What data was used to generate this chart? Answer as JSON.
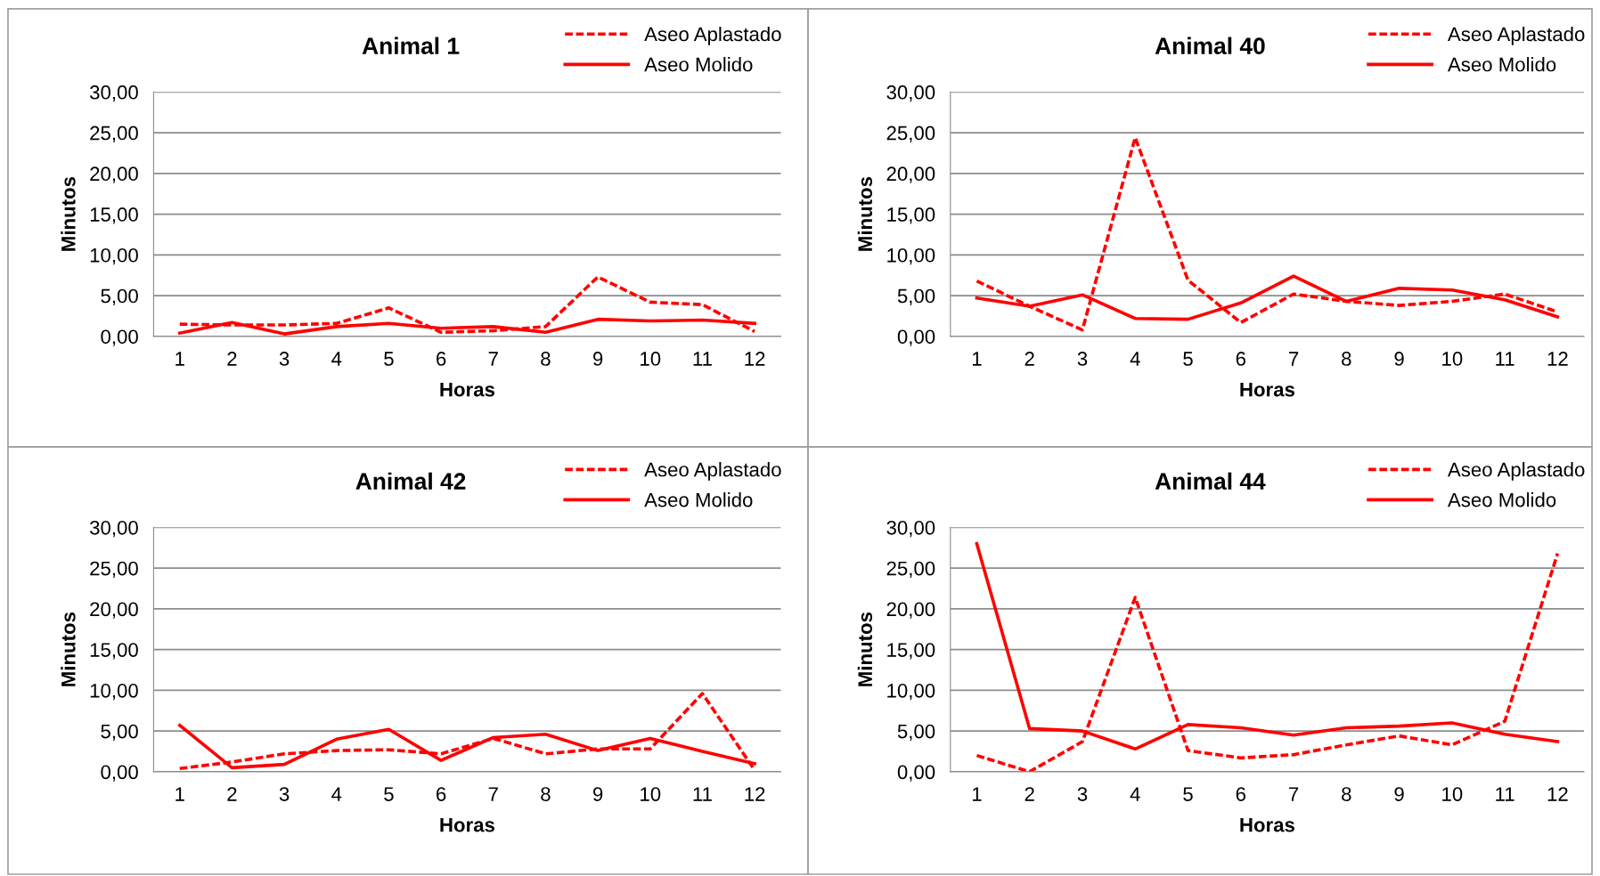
{
  "chart_data": [
    {
      "type": "line",
      "title": "Animal 1",
      "xlabel": "Horas",
      "ylabel": "Minutos",
      "categories": [
        "1",
        "2",
        "3",
        "4",
        "5",
        "6",
        "7",
        "8",
        "9",
        "10",
        "11",
        "12"
      ],
      "ylim": [
        0,
        30
      ],
      "yticks": [
        {
          "value": 0,
          "label": "0,00"
        },
        {
          "value": 5,
          "label": "5,00"
        },
        {
          "value": 10,
          "label": "10,00"
        },
        {
          "value": 15,
          "label": "15,00"
        },
        {
          "value": 20,
          "label": "20,00"
        },
        {
          "value": 25,
          "label": "25,00"
        },
        {
          "value": 30,
          "label": "30,00"
        }
      ],
      "grid": "y",
      "legend": "top right",
      "marker": "none",
      "series": [
        {
          "name": "Aseo Aplastado",
          "color": "#ff0000",
          "line_style": "dashed",
          "values": [
            1.5,
            1.4,
            1.4,
            1.6,
            3.5,
            0.5,
            0.7,
            1.2,
            7.3,
            4.2,
            3.9,
            0.6
          ]
        },
        {
          "name": "Aseo Molido",
          "color": "#ff0000",
          "line_style": "solid",
          "values": [
            0.4,
            1.7,
            0.3,
            1.2,
            1.6,
            1.0,
            1.2,
            0.5,
            2.1,
            1.9,
            2.0,
            1.6
          ]
        }
      ]
    },
    {
      "type": "line",
      "title": "Animal 40",
      "xlabel": "Horas",
      "ylabel": "Minutos",
      "categories": [
        "1",
        "2",
        "3",
        "4",
        "5",
        "6",
        "7",
        "8",
        "9",
        "10",
        "11",
        "12"
      ],
      "ylim": [
        0,
        30
      ],
      "yticks": [
        {
          "value": 0,
          "label": "0,00"
        },
        {
          "value": 5,
          "label": "5,00"
        },
        {
          "value": 10,
          "label": "10,00"
        },
        {
          "value": 15,
          "label": "15,00"
        },
        {
          "value": 20,
          "label": "20,00"
        },
        {
          "value": 25,
          "label": "25,00"
        },
        {
          "value": 30,
          "label": "30,00"
        }
      ],
      "grid": "y",
      "legend": "top right",
      "marker": "none",
      "series": [
        {
          "name": "Aseo Aplastado",
          "color": "#ff0000",
          "line_style": "dashed",
          "values": [
            6.8,
            3.7,
            0.8,
            24.4,
            6.9,
            1.7,
            5.2,
            4.3,
            3.8,
            4.3,
            5.2,
            3.0
          ]
        },
        {
          "name": "Aseo Molido",
          "color": "#ff0000",
          "line_style": "solid",
          "values": [
            4.7,
            3.7,
            5.1,
            2.2,
            2.1,
            4.1,
            7.4,
            4.3,
            5.9,
            5.7,
            4.5,
            2.4
          ]
        }
      ]
    },
    {
      "type": "line",
      "title": "Animal 42",
      "xlabel": "Horas",
      "ylabel": "Minutos",
      "categories": [
        "1",
        "2",
        "3",
        "4",
        "5",
        "6",
        "7",
        "8",
        "9",
        "10",
        "11",
        "12"
      ],
      "ylim": [
        0,
        30
      ],
      "yticks": [
        {
          "value": 0,
          "label": "0,00"
        },
        {
          "value": 5,
          "label": "5,00"
        },
        {
          "value": 10,
          "label": "10,00"
        },
        {
          "value": 15,
          "label": "15,00"
        },
        {
          "value": 20,
          "label": "20,00"
        },
        {
          "value": 25,
          "label": "25,00"
        },
        {
          "value": 30,
          "label": "30,00"
        }
      ],
      "grid": "y",
      "legend": "top right",
      "marker": "none",
      "series": [
        {
          "name": "Aseo Aplastado",
          "color": "#ff0000",
          "line_style": "dashed",
          "values": [
            0.4,
            1.2,
            2.2,
            2.6,
            2.7,
            2.2,
            4.1,
            2.2,
            2.8,
            2.8,
            9.6,
            0.2
          ]
        },
        {
          "name": "Aseo Molido",
          "color": "#ff0000",
          "line_style": "solid",
          "values": [
            5.7,
            0.5,
            0.9,
            4.0,
            5.2,
            1.4,
            4.2,
            4.6,
            2.6,
            4.1,
            2.5,
            1.0
          ]
        }
      ]
    },
    {
      "type": "line",
      "title": "Animal 44",
      "xlabel": "Horas",
      "ylabel": "Minutos",
      "categories": [
        "1",
        "2",
        "3",
        "4",
        "5",
        "6",
        "7",
        "8",
        "9",
        "10",
        "11",
        "12"
      ],
      "ylim": [
        0,
        30
      ],
      "yticks": [
        {
          "value": 0,
          "label": "0,00"
        },
        {
          "value": 5,
          "label": "5,00"
        },
        {
          "value": 10,
          "label": "10,00"
        },
        {
          "value": 15,
          "label": "15,00"
        },
        {
          "value": 20,
          "label": "20,00"
        },
        {
          "value": 25,
          "label": "25,00"
        },
        {
          "value": 30,
          "label": "30,00"
        }
      ],
      "grid": "y",
      "legend": "top right",
      "marker": "none",
      "series": [
        {
          "name": "Aseo Aplastado",
          "color": "#ff0000",
          "line_style": "dashed",
          "values": [
            2.0,
            0.0,
            3.7,
            21.4,
            2.6,
            1.7,
            2.1,
            3.3,
            4.4,
            3.3,
            6.2,
            26.8
          ]
        },
        {
          "name": "Aseo Molido",
          "color": "#ff0000",
          "line_style": "solid",
          "values": [
            28.0,
            5.3,
            5.0,
            2.8,
            5.8,
            5.4,
            4.5,
            5.4,
            5.6,
            6.0,
            4.6,
            3.7
          ]
        }
      ]
    }
  ]
}
